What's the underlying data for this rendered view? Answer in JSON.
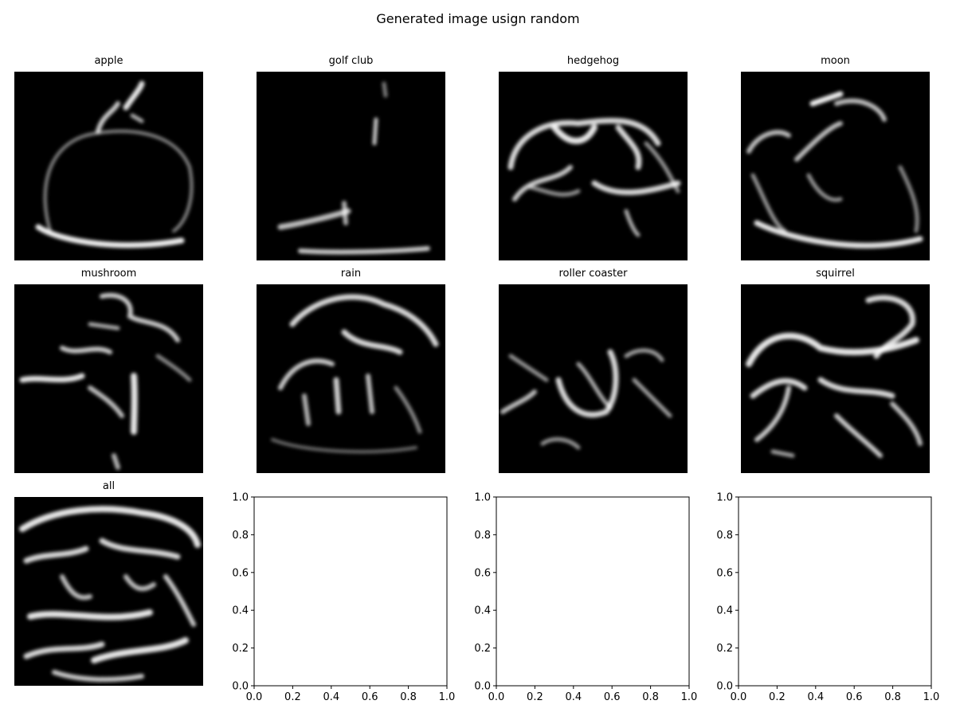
{
  "figure": {
    "title": "Generated image usign random"
  },
  "chart_data": {
    "type": "image-grid",
    "title": "Generated image usign random",
    "grid": {
      "rows": 3,
      "cols": 4
    },
    "panels": [
      {
        "title": "apple",
        "content": "generated-sketch",
        "colormap": "gray"
      },
      {
        "title": "golf club",
        "content": "generated-sketch",
        "colormap": "gray"
      },
      {
        "title": "hedgehog",
        "content": "generated-sketch",
        "colormap": "gray"
      },
      {
        "title": "moon",
        "content": "generated-sketch",
        "colormap": "gray"
      },
      {
        "title": "mushroom",
        "content": "generated-sketch",
        "colormap": "gray"
      },
      {
        "title": "rain",
        "content": "generated-sketch",
        "colormap": "gray"
      },
      {
        "title": "roller coaster",
        "content": "generated-sketch",
        "colormap": "gray"
      },
      {
        "title": "squirrel",
        "content": "generated-sketch",
        "colormap": "gray"
      },
      {
        "title": "all",
        "content": "generated-sketch",
        "colormap": "gray"
      }
    ],
    "empty_axes": [
      {
        "xlim": [
          0.0,
          1.0
        ],
        "ylim": [
          0.0,
          1.0
        ],
        "xticks": [
          "0.0",
          "0.2",
          "0.4",
          "0.6",
          "0.8",
          "1.0"
        ],
        "yticks": [
          "0.0",
          "0.2",
          "0.4",
          "0.6",
          "0.8",
          "1.0"
        ]
      },
      {
        "xlim": [
          0.0,
          1.0
        ],
        "ylim": [
          0.0,
          1.0
        ],
        "xticks": [
          "0.0",
          "0.2",
          "0.4",
          "0.6",
          "0.8",
          "1.0"
        ],
        "yticks": [
          "0.0",
          "0.2",
          "0.4",
          "0.6",
          "0.8",
          "1.0"
        ]
      },
      {
        "xlim": [
          0.0,
          1.0
        ],
        "ylim": [
          0.0,
          1.0
        ],
        "xticks": [
          "0.0",
          "0.2",
          "0.4",
          "0.6",
          "0.8",
          "1.0"
        ],
        "yticks": [
          "0.0",
          "0.2",
          "0.4",
          "0.6",
          "0.8",
          "1.0"
        ]
      }
    ]
  }
}
